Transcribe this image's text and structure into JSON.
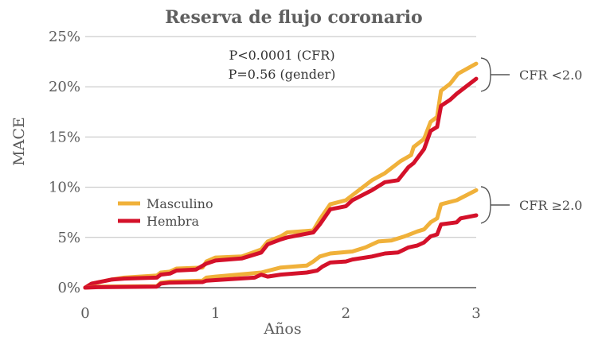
{
  "chart_data": {
    "type": "line",
    "title": "Reserva de flujo coronario",
    "xlabel": "Años",
    "ylabel": "MACE",
    "xlim": [
      0,
      3
    ],
    "ylim": [
      0,
      25
    ],
    "x_ticks": [
      "0",
      "1",
      "2",
      "3"
    ],
    "y_ticks": [
      "0%",
      "5%",
      "10%",
      "15%",
      "20%",
      "25%"
    ],
    "grid": true,
    "legend_position": "left",
    "annotations": [
      "P<0.0001 (CFR)",
      "P=0.56 (gender)"
    ],
    "group_labels": [
      "CFR <2.0",
      "CFR ≥2.0"
    ],
    "series": [
      {
        "name": "Masculino",
        "group": "CFR <2.0",
        "color": "#f0b13a",
        "points": [
          [
            0,
            0
          ],
          [
            0.05,
            0.4
          ],
          [
            0.2,
            0.8
          ],
          [
            0.3,
            1.0
          ],
          [
            0.55,
            1.2
          ],
          [
            0.58,
            1.5
          ],
          [
            0.65,
            1.6
          ],
          [
            0.7,
            1.9
          ],
          [
            0.9,
            2.0
          ],
          [
            0.93,
            2.6
          ],
          [
            1.0,
            3.0
          ],
          [
            1.2,
            3.1
          ],
          [
            1.35,
            3.8
          ],
          [
            1.4,
            4.6
          ],
          [
            1.5,
            5.1
          ],
          [
            1.55,
            5.5
          ],
          [
            1.75,
            5.7
          ],
          [
            1.8,
            6.8
          ],
          [
            1.88,
            8.3
          ],
          [
            2.0,
            8.7
          ],
          [
            2.05,
            9.2
          ],
          [
            2.2,
            10.7
          ],
          [
            2.3,
            11.4
          ],
          [
            2.42,
            12.6
          ],
          [
            2.5,
            13.2
          ],
          [
            2.52,
            14.0
          ],
          [
            2.6,
            14.8
          ],
          [
            2.65,
            16.5
          ],
          [
            2.7,
            17.0
          ],
          [
            2.73,
            19.6
          ],
          [
            2.8,
            20.3
          ],
          [
            2.86,
            21.3
          ],
          [
            3.0,
            22.3
          ]
        ]
      },
      {
        "name": "Hembra",
        "group": "CFR <2.0",
        "color": "#d4112a",
        "points": [
          [
            0,
            0
          ],
          [
            0.05,
            0.4
          ],
          [
            0.2,
            0.8
          ],
          [
            0.3,
            0.9
          ],
          [
            0.55,
            1.0
          ],
          [
            0.58,
            1.3
          ],
          [
            0.65,
            1.4
          ],
          [
            0.7,
            1.7
          ],
          [
            0.85,
            1.8
          ],
          [
            0.93,
            2.4
          ],
          [
            1.0,
            2.7
          ],
          [
            1.2,
            2.9
          ],
          [
            1.35,
            3.5
          ],
          [
            1.4,
            4.3
          ],
          [
            1.5,
            4.8
          ],
          [
            1.55,
            5.0
          ],
          [
            1.75,
            5.5
          ],
          [
            1.8,
            6.3
          ],
          [
            1.88,
            7.8
          ],
          [
            2.0,
            8.1
          ],
          [
            2.05,
            8.7
          ],
          [
            2.2,
            9.7
          ],
          [
            2.3,
            10.5
          ],
          [
            2.4,
            10.7
          ],
          [
            2.48,
            12.0
          ],
          [
            2.52,
            12.4
          ],
          [
            2.6,
            13.8
          ],
          [
            2.65,
            15.6
          ],
          [
            2.7,
            16.0
          ],
          [
            2.73,
            18.1
          ],
          [
            2.8,
            18.7
          ],
          [
            2.85,
            19.3
          ],
          [
            3.0,
            20.8
          ]
        ]
      },
      {
        "name": "Masculino",
        "group": "CFR ≥2.0",
        "color": "#f0b13a",
        "points": [
          [
            0,
            0
          ],
          [
            0.1,
            0.1
          ],
          [
            0.55,
            0.15
          ],
          [
            0.58,
            0.5
          ],
          [
            0.65,
            0.6
          ],
          [
            0.9,
            0.7
          ],
          [
            0.93,
            1.0
          ],
          [
            1.0,
            1.1
          ],
          [
            1.35,
            1.5
          ],
          [
            1.5,
            2.0
          ],
          [
            1.7,
            2.2
          ],
          [
            1.75,
            2.6
          ],
          [
            1.8,
            3.1
          ],
          [
            1.88,
            3.4
          ],
          [
            2.05,
            3.6
          ],
          [
            2.15,
            4.0
          ],
          [
            2.25,
            4.6
          ],
          [
            2.35,
            4.7
          ],
          [
            2.45,
            5.1
          ],
          [
            2.55,
            5.6
          ],
          [
            2.6,
            5.8
          ],
          [
            2.65,
            6.5
          ],
          [
            2.7,
            6.9
          ],
          [
            2.73,
            8.3
          ],
          [
            2.85,
            8.7
          ],
          [
            3.0,
            9.7
          ]
        ]
      },
      {
        "name": "Hembra",
        "group": "CFR ≥2.0",
        "color": "#d4112a",
        "points": [
          [
            0,
            0
          ],
          [
            0.1,
            0.05
          ],
          [
            0.55,
            0.1
          ],
          [
            0.58,
            0.4
          ],
          [
            0.65,
            0.5
          ],
          [
            0.9,
            0.55
          ],
          [
            0.93,
            0.7
          ],
          [
            1.0,
            0.75
          ],
          [
            1.3,
            1.0
          ],
          [
            1.35,
            1.3
          ],
          [
            1.4,
            1.1
          ],
          [
            1.5,
            1.3
          ],
          [
            1.7,
            1.5
          ],
          [
            1.78,
            1.7
          ],
          [
            1.82,
            2.1
          ],
          [
            1.88,
            2.5
          ],
          [
            2.0,
            2.6
          ],
          [
            2.05,
            2.8
          ],
          [
            2.2,
            3.1
          ],
          [
            2.3,
            3.4
          ],
          [
            2.4,
            3.5
          ],
          [
            2.48,
            4.0
          ],
          [
            2.55,
            4.2
          ],
          [
            2.6,
            4.5
          ],
          [
            2.65,
            5.1
          ],
          [
            2.7,
            5.3
          ],
          [
            2.73,
            6.3
          ],
          [
            2.85,
            6.5
          ],
          [
            2.88,
            6.9
          ],
          [
            3.0,
            7.2
          ]
        ]
      }
    ]
  }
}
